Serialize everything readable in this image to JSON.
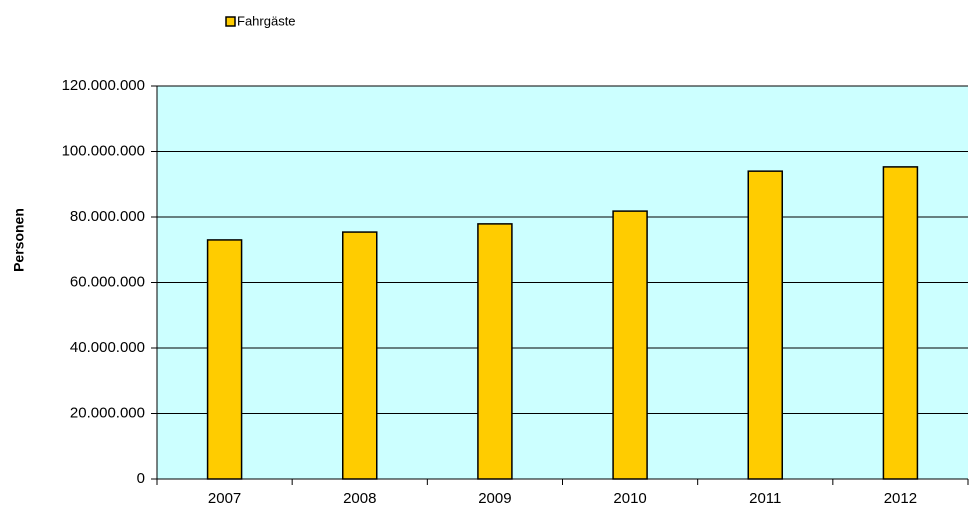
{
  "chart_data": {
    "type": "bar",
    "y_axis_label": "Personen",
    "categories": [
      "2007",
      "2008",
      "2009",
      "2010",
      "2011",
      "2012"
    ],
    "series": [
      {
        "name": "Fahrgäste",
        "color": "#ffcc00",
        "values": [
          73000000,
          75400000,
          77900000,
          81800000,
          94000000,
          95300000
        ]
      }
    ],
    "ylim": [
      0,
      120000000
    ],
    "yticks": [
      0,
      {
        "value": 20000000,
        "label": "20.000.000"
      },
      {
        "value": 40000000,
        "label": "40.000.000"
      },
      {
        "value": 60000000,
        "label": "60.000.000"
      },
      {
        "value": 80000000,
        "label": "80.000.000"
      },
      {
        "value": 100000000,
        "label": "100.000.000"
      },
      {
        "value": 120000000,
        "label": "120.000.000"
      }
    ],
    "grid": true,
    "legend": "top",
    "plot_background": "#ccffff"
  }
}
